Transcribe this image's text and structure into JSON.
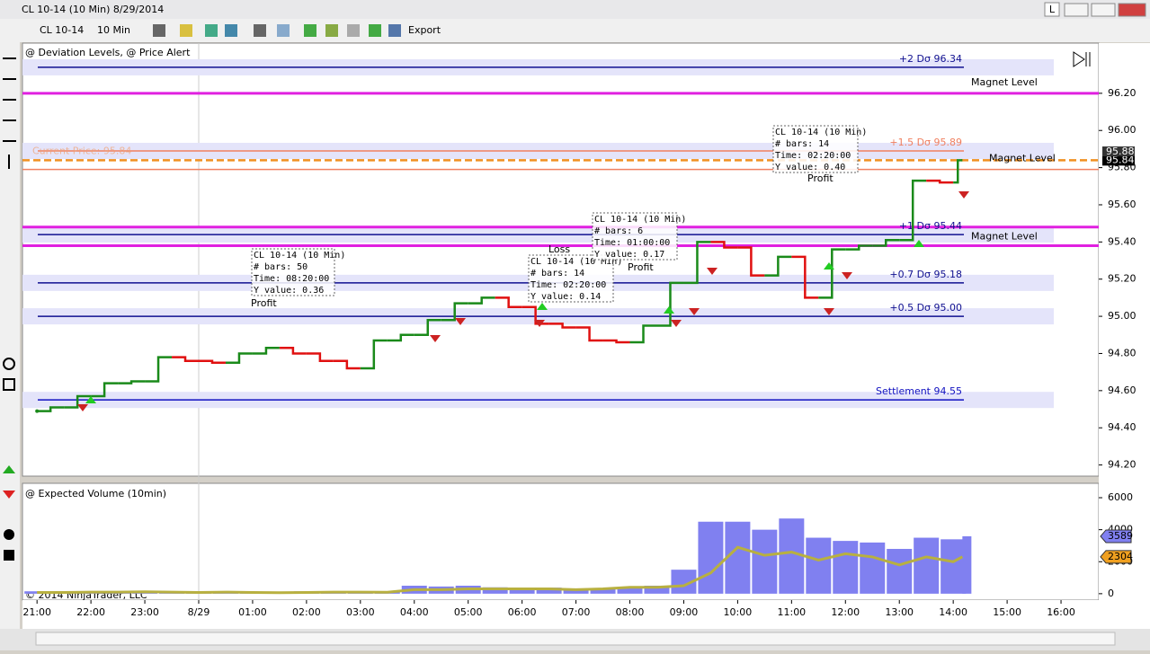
{
  "window": {
    "title": "CL 10-14 (10 Min)  8/29/2014",
    "button": "L"
  },
  "toolbar": {
    "instrument": "CL 10-14",
    "interval": "10 Min",
    "export": "Export"
  },
  "copyright": "© 2014 NinjaTrader, LLC",
  "chart_data": [
    {
      "type": "line",
      "title": "@ Deviation Levels, @ Price Alert",
      "x": [
        0,
        0.5,
        1,
        1.5,
        2,
        2.5,
        3,
        3.5,
        4,
        4.5,
        5,
        5.5,
        6,
        6.5,
        7,
        7.5,
        8,
        8.5,
        9,
        9.5,
        10,
        10.5,
        11,
        11.5,
        12,
        12.5,
        13,
        13.5,
        14,
        14.5,
        15,
        15.5,
        16,
        16.5,
        17,
        17.17
      ],
      "values": [
        94.49,
        94.51,
        94.57,
        94.64,
        94.65,
        94.78,
        94.76,
        94.75,
        94.8,
        94.83,
        94.8,
        94.76,
        94.72,
        94.87,
        94.9,
        94.98,
        95.07,
        95.1,
        95.05,
        94.96,
        94.94,
        94.87,
        94.86,
        94.95,
        95.18,
        95.4,
        95.37,
        95.22,
        95.32,
        95.1,
        95.36,
        95.38,
        95.41,
        95.73,
        95.72,
        95.84
      ],
      "color_up": "#1a8a1a",
      "color_down": "#e01010",
      "xlim": [
        -0.27,
        19.7
      ],
      "xticks": [
        {
          "value": 0,
          "label": "21:00"
        },
        {
          "value": 1,
          "label": "22:00"
        },
        {
          "value": 2,
          "label": "23:00"
        },
        {
          "value": 3,
          "label": "8/29"
        },
        {
          "value": 4,
          "label": "01:00"
        },
        {
          "value": 5,
          "label": "02:00"
        },
        {
          "value": 6,
          "label": "03:00"
        },
        {
          "value": 7,
          "label": "04:00"
        },
        {
          "value": 8,
          "label": "05:00"
        },
        {
          "value": 9,
          "label": "06:00"
        },
        {
          "value": 10,
          "label": "07:00"
        },
        {
          "value": 11,
          "label": "08:00"
        },
        {
          "value": 12,
          "label": "09:00"
        },
        {
          "value": 13,
          "label": "10:00"
        },
        {
          "value": 14,
          "label": "11:00"
        },
        {
          "value": 15,
          "label": "12:00"
        },
        {
          "value": 16,
          "label": "13:00"
        },
        {
          "value": 17,
          "label": "14:00"
        },
        {
          "value": 18,
          "label": "15:00"
        },
        {
          "value": 19,
          "label": "16:00"
        }
      ],
      "ylim": [
        94.14,
        96.47
      ],
      "yticks": [
        {
          "value": 94.2,
          "label": "94.20"
        },
        {
          "value": 94.4,
          "label": "94.40"
        },
        {
          "value": 94.6,
          "label": "94.60"
        },
        {
          "value": 94.8,
          "label": "94.80"
        },
        {
          "value": 95,
          "label": "95.00"
        },
        {
          "value": 95.2,
          "label": "95.20"
        },
        {
          "value": 95.4,
          "label": "95.40"
        },
        {
          "value": 95.6,
          "label": "95.60"
        },
        {
          "value": 95.8,
          "label": "95.80"
        },
        {
          "value": 96,
          "label": "96.00"
        },
        {
          "value": 96.2,
          "label": "96.20"
        }
      ],
      "levels": [
        {
          "label": "+2 Dσ 96.34",
          "value": 96.34,
          "color": "#101090",
          "band": true
        },
        {
          "label": "Magnet Level",
          "value": 96.2,
          "color": "#e020e0"
        },
        {
          "label": "+1.5 Dσ 95.89",
          "value": 95.89,
          "color": "#f08060",
          "band": true
        },
        {
          "label": "Current Price: 95.84",
          "value": 95.84,
          "color": "#f09020",
          "dashed": true
        },
        {
          "label": "Magnet Level",
          "value": 95.79,
          "color": "#f08060"
        },
        {
          "label": null,
          "value": 95.48,
          "color": "#e020e0"
        },
        {
          "label": "+1 Dσ 95.44",
          "value": 95.44,
          "color": "#101090",
          "band": true
        },
        {
          "label": "Magnet Level",
          "value": 95.38,
          "color": "#e020e0"
        },
        {
          "label": "+0.7 Dσ 95.18",
          "value": 95.18,
          "color": "#101090",
          "band": true
        },
        {
          "label": "+0.5 Dσ 95.00",
          "value": 95.0,
          "color": "#101090",
          "band": true
        },
        {
          "label": "Settlement 94.55",
          "value": 94.55,
          "color": "#1010c0",
          "band": true
        }
      ],
      "price_marker": 95.88,
      "annotations": [
        {
          "lines": [
            "CL 10-14 (10 Min)",
            "# bars:   50",
            "Time:     08:20:00",
            "Y value: 0.36"
          ],
          "result": "Profit"
        },
        {
          "lines": [
            "CL 10-14 (10 Min)",
            "# bars:   14",
            "Time:     02:20:00",
            "Y value: 0.14"
          ],
          "result": "Loss"
        },
        {
          "lines": [
            "CL 10-14 (10 Min)",
            "# bars:   6",
            "Time:     01:00:00",
            "Y value: 0.17"
          ],
          "result": "Profit"
        },
        {
          "lines": [
            "CL 10-14 (10 Min)",
            "# bars:   14",
            "Time:     02:20:00",
            "Y value: 0.40"
          ],
          "result": "Profit"
        }
      ]
    },
    {
      "type": "bar_line",
      "title": "@ Expected Volume (10min)",
      "x": [
        0,
        0.5,
        1,
        1.5,
        2,
        2.5,
        3,
        3.5,
        4,
        4.5,
        5,
        5.5,
        6,
        6.5,
        7,
        7.5,
        8,
        8.5,
        9,
        9.5,
        10,
        10.5,
        11,
        11.5,
        12,
        12.5,
        13,
        13.5,
        14,
        14.5,
        15,
        15.5,
        16,
        16.5,
        17,
        17.17
      ],
      "series": [
        {
          "color": "#8080f0",
          "values": [
            150,
            120,
            100,
            120,
            180,
            150,
            100,
            120,
            80,
            100,
            150,
            150,
            120,
            130,
            500,
            450,
            500,
            400,
            350,
            380,
            330,
            350,
            400,
            500,
            1500,
            4500,
            4500,
            4000,
            4700,
            3500,
            3300,
            3200,
            2800,
            3500,
            3400,
            3589
          ]
        },
        {
          "color": "#b8b040",
          "values": [
            80,
            80,
            100,
            100,
            120,
            100,
            80,
            100,
            80,
            60,
            80,
            100,
            100,
            90,
            250,
            250,
            300,
            300,
            300,
            300,
            250,
            300,
            400,
            400,
            500,
            1300,
            2900,
            2400,
            2600,
            2100,
            2500,
            2300,
            1800,
            2300,
            2000,
            2304
          ]
        }
      ],
      "xlim": [
        -0.27,
        19.7
      ],
      "ylim": [
        -400,
        6900
      ],
      "yticks": [
        0,
        2000,
        4000,
        6000
      ]
    }
  ]
}
